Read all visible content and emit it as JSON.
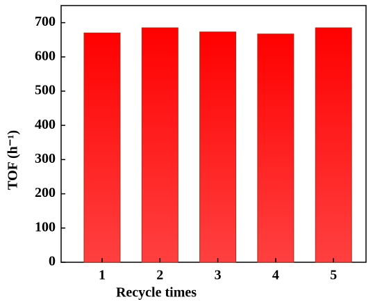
{
  "chart_data": {
    "type": "bar",
    "x_label": "Recycle times",
    "y_label": "TOF (h⁻¹)",
    "categories": [
      "1",
      "2",
      "3",
      "4",
      "5"
    ],
    "values": [
      670,
      685,
      673,
      667,
      685
    ],
    "color": "#ff1a1a",
    "ylim": [
      0,
      750
    ],
    "yticks": [
      0,
      100,
      200,
      300,
      400,
      500,
      600,
      700
    ]
  }
}
